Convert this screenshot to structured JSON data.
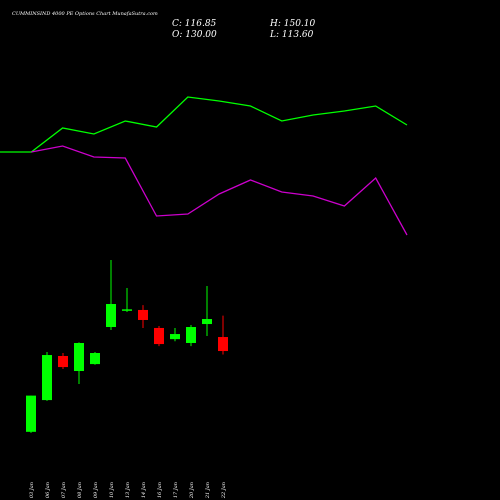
{
  "chart_data": [
    {
      "type": "candlestick",
      "title": "CUMMINSIND 4000 PE Options Chart MunafaSutra.com",
      "summary": [
        "C: 116.85",
        "H: 150.10",
        "O: 130.00",
        "L: 113.60"
      ],
      "categories": [
        "03 Jan",
        "06 Jan",
        "07 Jan",
        "08 Jan",
        "09 Jan",
        "10 Jan",
        "13 Jan",
        "14 Jan",
        "16 Jan",
        "17 Jan",
        "20 Jan",
        "21 Jan",
        "22 Jan"
      ],
      "open": [
        41,
        70.8,
        112.2,
        98.1,
        104.6,
        139.4,
        155,
        155.4,
        138.5,
        128,
        124.4,
        142.2,
        130.0
      ],
      "high": [
        75,
        115.9,
        115,
        125,
        116,
        202.3,
        176,
        160,
        140.3,
        138.5,
        141.3,
        177.9,
        150.1
      ],
      "low": [
        40,
        70,
        100,
        85.9,
        104,
        136.6,
        153.5,
        138.5,
        121.5,
        126,
        121.5,
        131,
        113.6
      ],
      "close": [
        75,
        113.1,
        101.8,
        124.4,
        115,
        161,
        156,
        146,
        123.4,
        132.8,
        139.4,
        146.9,
        116.85
      ],
      "up_color": "#00ff00",
      "down_color": "#ff0000",
      "ylim": [
        -23,
        446.4
      ]
    },
    {
      "type": "line",
      "x": [
        0,
        1,
        2,
        3,
        4,
        5,
        6,
        7,
        8,
        9,
        10,
        11,
        12,
        13
      ],
      "xlim": [
        0,
        13
      ],
      "ylim": [
        0,
        500
      ],
      "series": [
        {
          "color": "#00ff00",
          "values": [
            348,
            348,
            372,
            366,
            379,
            373,
            403,
            399,
            394,
            379,
            385,
            389,
            394,
            375
          ]
        },
        {
          "color": "#cc00cc",
          "values": [
            null,
            348,
            354,
            343,
            342,
            284,
            286,
            306,
            320,
            308,
            304,
            294,
            322,
            265
          ]
        }
      ]
    }
  ]
}
